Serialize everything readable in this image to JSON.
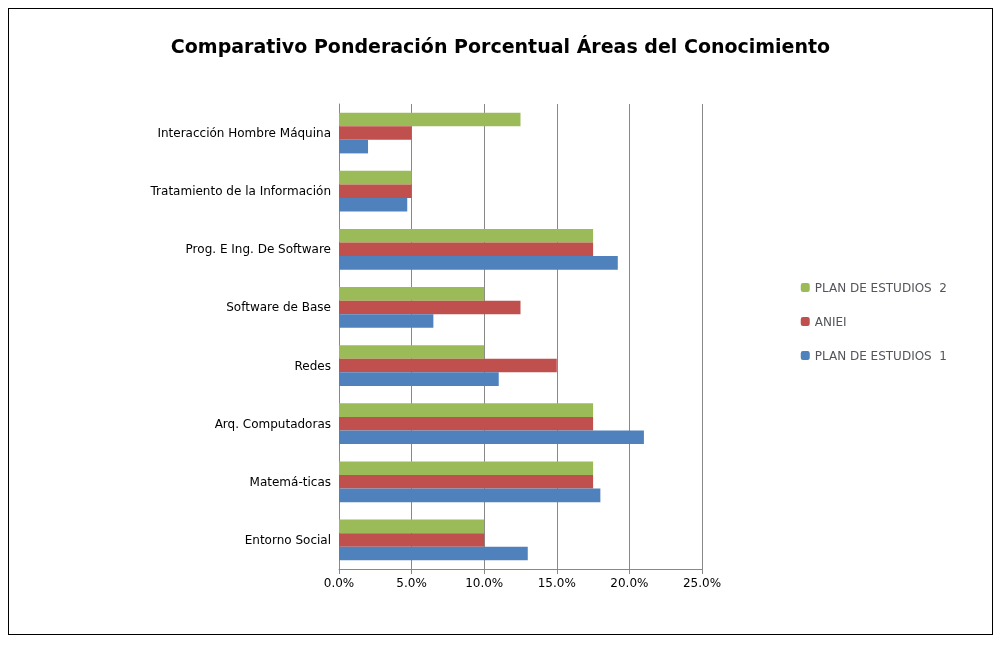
{
  "chart_data": {
    "type": "bar",
    "orientation": "horizontal",
    "title": "Comparativo Ponderación Porcentual Áreas del Conocimiento",
    "categories": [
      "Interacción Hombre Máquina",
      "Tratamiento de la Información",
      "Prog. E Ing. De Software",
      "Software de Base",
      "Redes",
      "Arq. Computadoras",
      "Matemá-ticas",
      "Entorno Social"
    ],
    "series": [
      {
        "name": "PLAN DE ESTUDIOS  2",
        "color": "#9bbb59",
        "values": [
          12.5,
          5,
          17.5,
          10,
          10,
          17.5,
          17.5,
          10
        ]
      },
      {
        "name": "ANIEI",
        "color": "#c0504d",
        "values": [
          5,
          5,
          17.5,
          12.5,
          15,
          17.5,
          17.5,
          10
        ]
      },
      {
        "name": "PLAN DE ESTUDIOS  1",
        "color": "#4f81bd",
        "values": [
          2,
          4.7,
          19.2,
          6.5,
          11,
          21,
          18,
          13
        ]
      }
    ],
    "xlim": [
      0,
      25
    ],
    "xticks": [
      {
        "value": 0,
        "label": "0.0%"
      },
      {
        "value": 5,
        "label": "5.0%"
      },
      {
        "value": 10,
        "label": "10.0%"
      },
      {
        "value": 15,
        "label": "15.0%"
      },
      {
        "value": 20,
        "label": "20.0%"
      },
      {
        "value": 25,
        "label": "25.0%"
      }
    ],
    "grid": "x",
    "legend": "right"
  }
}
